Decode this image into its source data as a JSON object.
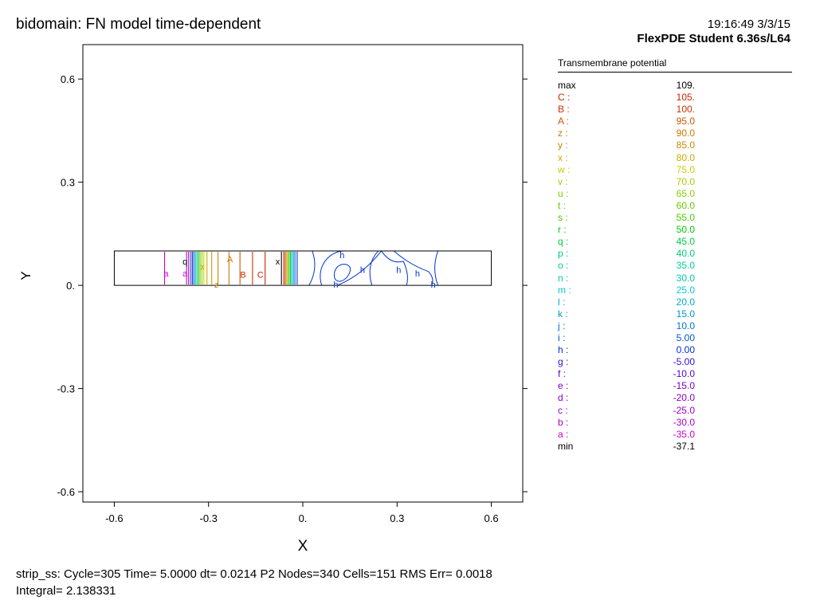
{
  "header": {
    "title": "bidomain: FN model time-dependent",
    "timestamp": "19:16:49 3/3/15",
    "version": "FlexPDE Student 6.36s/L64"
  },
  "chart_data": {
    "type": "contour",
    "xlabel": "X",
    "ylabel": "Y",
    "xlim": [
      -0.7,
      0.7
    ],
    "ylim": [
      -0.63,
      0.7
    ],
    "xticks": [
      {
        "value": -0.6,
        "label": "-0.6"
      },
      {
        "value": -0.3,
        "label": "-0.3"
      },
      {
        "value": 0.0,
        "label": "0."
      },
      {
        "value": 0.3,
        "label": "0.3"
      },
      {
        "value": 0.6,
        "label": "0.6"
      }
    ],
    "yticks": [
      {
        "value": 0.6,
        "label": "0.6"
      },
      {
        "value": 0.3,
        "label": "0.3"
      },
      {
        "value": 0.0,
        "label": "0."
      },
      {
        "value": -0.3,
        "label": "-0.3"
      },
      {
        "value": -0.6,
        "label": "-0.6"
      }
    ],
    "domain_rect": {
      "x": [
        -0.6,
        0.6
      ],
      "y": [
        0.0,
        0.1
      ]
    },
    "contour_lines": [
      {
        "x": -0.44,
        "color": "#cc00cc"
      },
      {
        "x": -0.37,
        "color": "#cc00cc"
      },
      {
        "x": -0.364,
        "color": "#9933cc"
      },
      {
        "x": -0.358,
        "color": "#6633cc"
      },
      {
        "x": -0.352,
        "color": "#0000cc"
      },
      {
        "x": -0.347,
        "color": "#0066cc"
      },
      {
        "x": -0.342,
        "color": "#00aacc"
      },
      {
        "x": -0.337,
        "color": "#00cc99"
      },
      {
        "x": -0.332,
        "color": "#00cc00"
      },
      {
        "x": -0.327,
        "color": "#66cc00"
      },
      {
        "x": -0.321,
        "color": "#99cc00"
      },
      {
        "x": -0.315,
        "color": "#cccc00"
      },
      {
        "x": -0.305,
        "color": "#ccaa00"
      },
      {
        "x": -0.29,
        "color": "#cc9900"
      },
      {
        "x": -0.27,
        "color": "#cc8800"
      },
      {
        "x": -0.235,
        "color": "#cc7700"
      },
      {
        "x": -0.2,
        "color": "#cc5500"
      },
      {
        "x": -0.16,
        "color": "#cc3300"
      },
      {
        "x": -0.12,
        "color": "#cc2200"
      },
      {
        "x": -0.068,
        "color": "#000000"
      },
      {
        "x": -0.06,
        "color": "#cc0000"
      },
      {
        "x": -0.055,
        "color": "#cc6600"
      },
      {
        "x": -0.051,
        "color": "#ccaa00"
      },
      {
        "x": -0.047,
        "color": "#99cc00"
      },
      {
        "x": -0.043,
        "color": "#33cc00"
      },
      {
        "x": -0.039,
        "color": "#00cc66"
      },
      {
        "x": -0.035,
        "color": "#00cccc"
      },
      {
        "x": -0.03,
        "color": "#0099cc"
      },
      {
        "x": -0.025,
        "color": "#0066cc"
      },
      {
        "x": -0.018,
        "color": "#0033cc"
      }
    ],
    "contour_labels": [
      {
        "text": "a",
        "x": -0.435,
        "y": 0.035,
        "color": "#cc00cc"
      },
      {
        "text": "a",
        "x": -0.375,
        "y": 0.035,
        "color": "#cc00cc"
      },
      {
        "text": "q",
        "x": -0.375,
        "y": 0.07,
        "color": "#000000"
      },
      {
        "text": "x",
        "x": -0.32,
        "y": 0.055,
        "color": "#ccaa00"
      },
      {
        "text": "z",
        "x": -0.275,
        "y": 0.002,
        "color": "#cc8800"
      },
      {
        "text": "A",
        "x": -0.232,
        "y": 0.077,
        "color": "#cc7700"
      },
      {
        "text": "B",
        "x": -0.19,
        "y": 0.032,
        "color": "#cc3300"
      },
      {
        "text": "C",
        "x": -0.135,
        "y": 0.032,
        "color": "#cc2200"
      },
      {
        "text": "x",
        "x": -0.08,
        "y": 0.07,
        "color": "#000000"
      },
      {
        "text": "h",
        "x": 0.125,
        "y": 0.088,
        "color": "#0033cc"
      },
      {
        "text": "h",
        "x": 0.19,
        "y": 0.045,
        "color": "#0033cc"
      },
      {
        "text": "h",
        "x": 0.305,
        "y": 0.045,
        "color": "#0033cc"
      },
      {
        "text": "h",
        "x": 0.365,
        "y": 0.035,
        "color": "#0033cc"
      },
      {
        "text": "h",
        "x": 0.105,
        "y": 0.003,
        "color": "#0033cc"
      },
      {
        "text": "h",
        "x": 0.415,
        "y": 0.003,
        "color": "#0033cc"
      }
    ],
    "legend": {
      "title": "Transmembrane potential",
      "entries": [
        {
          "key": "max",
          "value": "109.",
          "color": "#000000"
        },
        {
          "key": "C :",
          "value": "105.",
          "color": "#cc2200"
        },
        {
          "key": "B :",
          "value": "100.",
          "color": "#cc3300"
        },
        {
          "key": "A :",
          "value": "95.0",
          "color": "#cc5500"
        },
        {
          "key": "z :",
          "value": "90.0",
          "color": "#cc7700"
        },
        {
          "key": "y :",
          "value": "85.0",
          "color": "#cc8800"
        },
        {
          "key": "x :",
          "value": "80.0",
          "color": "#ccaa00"
        },
        {
          "key": "w :",
          "value": "75.0",
          "color": "#cccc00"
        },
        {
          "key": "v :",
          "value": "70.0",
          "color": "#aacc00"
        },
        {
          "key": "u :",
          "value": "65.0",
          "color": "#88cc00"
        },
        {
          "key": "t :",
          "value": "60.0",
          "color": "#66cc00"
        },
        {
          "key": "s :",
          "value": "55.0",
          "color": "#44cc00"
        },
        {
          "key": "r :",
          "value": "50.0",
          "color": "#00cc00"
        },
        {
          "key": "q :",
          "value": "45.0",
          "color": "#00cc44"
        },
        {
          "key": "p :",
          "value": "40.0",
          "color": "#00cc77"
        },
        {
          "key": "o :",
          "value": "35.0",
          "color": "#00cc99"
        },
        {
          "key": "n :",
          "value": "30.0",
          "color": "#00ccaa"
        },
        {
          "key": "m :",
          "value": "25.0",
          "color": "#00cccc"
        },
        {
          "key": "l :",
          "value": "20.0",
          "color": "#00aacc"
        },
        {
          "key": "k :",
          "value": "15.0",
          "color": "#0099cc"
        },
        {
          "key": "j :",
          "value": "10.0",
          "color": "#0077cc"
        },
        {
          "key": "i :",
          "value": "5.00",
          "color": "#0055cc"
        },
        {
          "key": "h :",
          "value": "0.00",
          "color": "#0033cc"
        },
        {
          "key": "g :",
          "value": "-5.00",
          "color": "#3311cc"
        },
        {
          "key": "f :",
          "value": "-10.0",
          "color": "#5500cc"
        },
        {
          "key": "e :",
          "value": "-15.0",
          "color": "#7700cc"
        },
        {
          "key": "d :",
          "value": "-20.0",
          "color": "#8800cc"
        },
        {
          "key": "c :",
          "value": "-25.0",
          "color": "#9900cc"
        },
        {
          "key": "b :",
          "value": "-30.0",
          "color": "#aa00cc"
        },
        {
          "key": "a :",
          "value": "-35.0",
          "color": "#cc00cc"
        },
        {
          "key": "min",
          "value": "-37.1",
          "color": "#000000"
        }
      ]
    }
  },
  "status": {
    "line1": "strip_ss:  Cycle=305  Time= 5.0000  dt= 0.0214  P2  Nodes=340 Cells=151 RMS Err= 0.0018",
    "line2": "Integral=  2.138331"
  }
}
